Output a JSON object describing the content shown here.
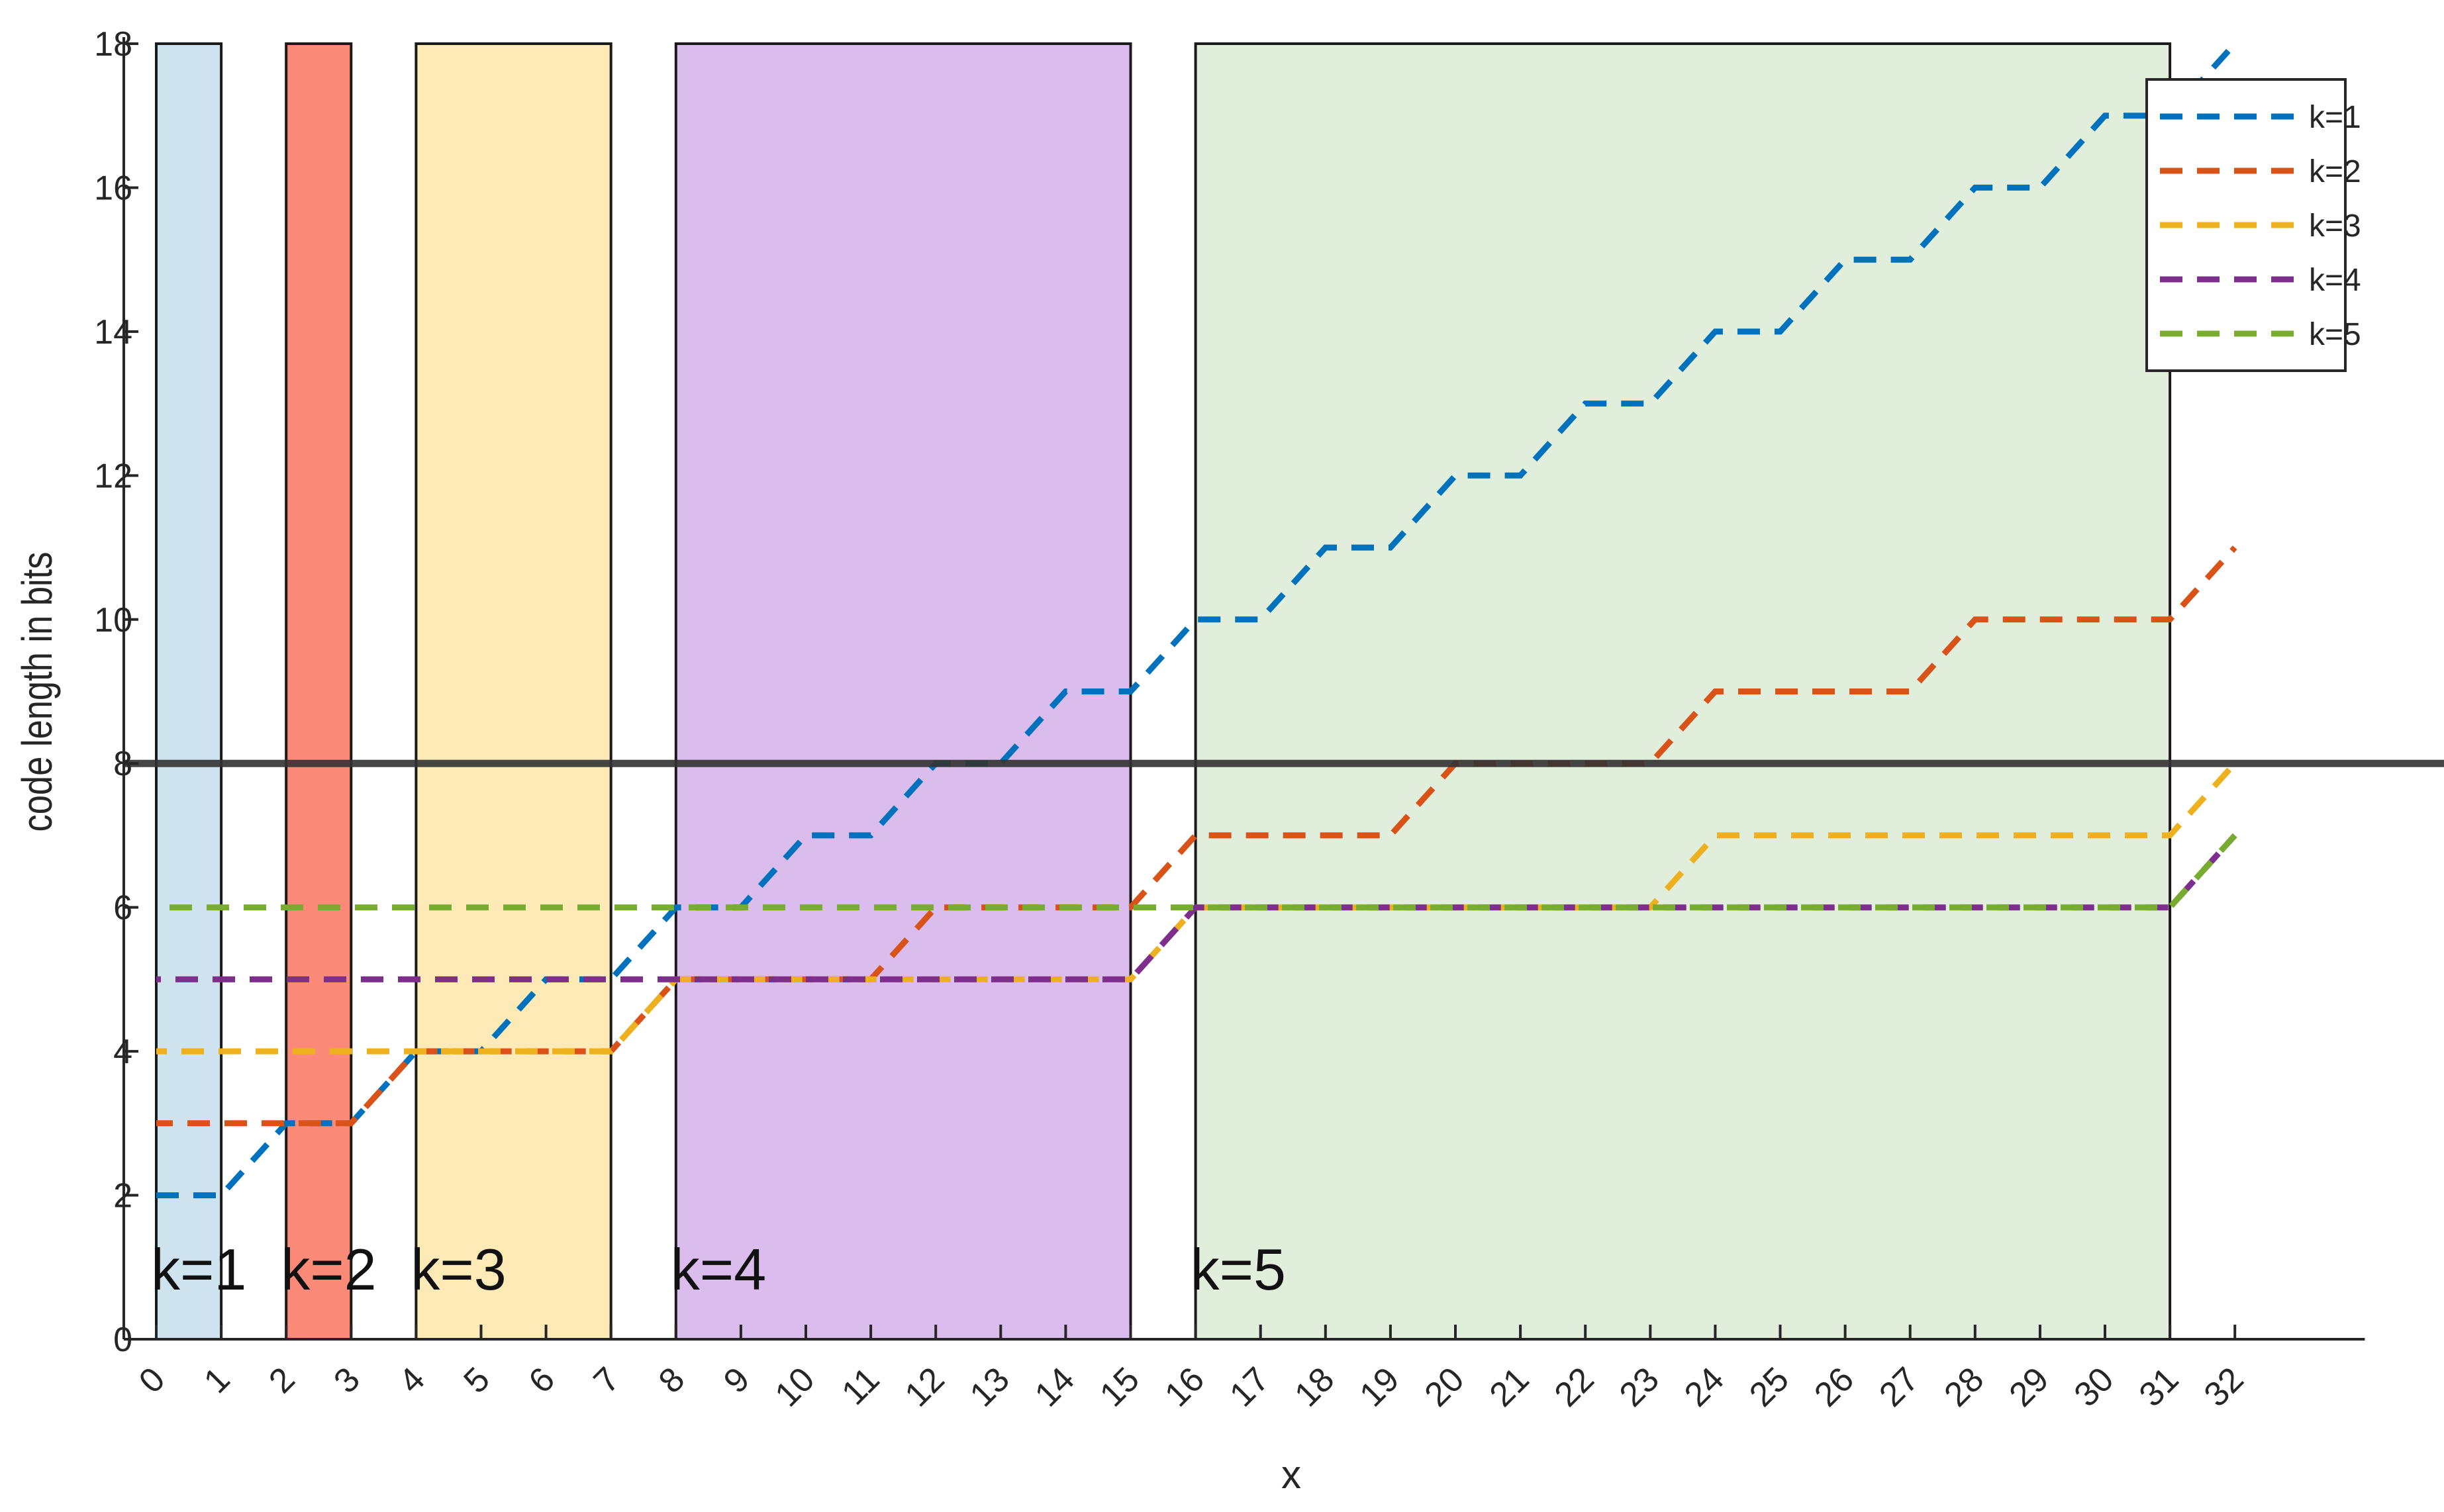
{
  "chart_data": {
    "type": "line",
    "xlabel": "x",
    "ylabel": "code length in bits",
    "xlim": [
      -0.5,
      34
    ],
    "ylim": [
      0,
      18
    ],
    "x_ticks": [
      0,
      1,
      2,
      3,
      4,
      5,
      6,
      7,
      8,
      9,
      10,
      11,
      12,
      13,
      14,
      15,
      16,
      17,
      18,
      19,
      20,
      21,
      22,
      23,
      24,
      25,
      26,
      27,
      28,
      29,
      30,
      31,
      32
    ],
    "y_ticks": [
      0,
      2,
      4,
      6,
      8,
      10,
      12,
      14,
      16,
      18
    ],
    "x_tick_labels": [
      "0",
      "1",
      "2",
      "3",
      "4",
      "5",
      "6",
      "7",
      "8",
      "9",
      "10",
      "11",
      "12",
      "13",
      "14",
      "15",
      "16",
      "17",
      "18",
      "19",
      "20",
      "21",
      "22",
      "23",
      "24",
      "25",
      "26",
      "27",
      "28",
      "29",
      "30",
      "31",
      "32"
    ],
    "y_tick_labels": [
      "0",
      "2",
      "4",
      "6",
      "8",
      "10",
      "12",
      "14",
      "16",
      "18"
    ],
    "reference_line": {
      "y": 8,
      "color": "#333333"
    },
    "regions": [
      {
        "label": "k=1",
        "x0": 0,
        "x1": 1,
        "color": "#cfe3ef"
      },
      {
        "label": "k=2",
        "x0": 2,
        "x1": 3,
        "color": "#fb8a78"
      },
      {
        "label": "k=3",
        "x0": 4,
        "x1": 7,
        "color": "#fdeab7"
      },
      {
        "label": "k=4",
        "x0": 8,
        "x1": 15,
        "color": "#dabded"
      },
      {
        "label": "k=5",
        "x0": 16,
        "x1": 31,
        "color": "#e2eedc"
      }
    ],
    "legend": {
      "position": "top-right",
      "entries": [
        "k=1",
        "k=2",
        "k=3",
        "k=4",
        "k=5"
      ]
    },
    "x": [
      0,
      1,
      2,
      3,
      4,
      5,
      6,
      7,
      8,
      9,
      10,
      11,
      12,
      13,
      14,
      15,
      16,
      17,
      18,
      19,
      20,
      21,
      22,
      23,
      24,
      25,
      26,
      27,
      28,
      29,
      30,
      31,
      32
    ],
    "series": [
      {
        "name": "k=1",
        "color": "#0072BD",
        "values": [
          2,
          2,
          3,
          3,
          4,
          4,
          5,
          5,
          6,
          6,
          7,
          7,
          8,
          8,
          9,
          9,
          10,
          10,
          11,
          11,
          12,
          12,
          13,
          13,
          14,
          14,
          15,
          15,
          16,
          16,
          17,
          17,
          18
        ]
      },
      {
        "name": "k=2",
        "color": "#D95319",
        "values": [
          3,
          3,
          3,
          3,
          4,
          4,
          4,
          4,
          5,
          5,
          5,
          5,
          6,
          6,
          6,
          6,
          7,
          7,
          7,
          7,
          8,
          8,
          8,
          8,
          9,
          9,
          9,
          9,
          10,
          10,
          10,
          10,
          11
        ]
      },
      {
        "name": "k=3",
        "color": "#EDB120",
        "values": [
          4,
          4,
          4,
          4,
          4,
          4,
          4,
          4,
          5,
          5,
          5,
          5,
          5,
          5,
          5,
          5,
          6,
          6,
          6,
          6,
          6,
          6,
          6,
          6,
          7,
          7,
          7,
          7,
          7,
          7,
          7,
          7,
          8
        ]
      },
      {
        "name": "k=4",
        "color": "#7E2F8E",
        "values": [
          5,
          5,
          5,
          5,
          5,
          5,
          5,
          5,
          5,
          5,
          5,
          5,
          5,
          5,
          5,
          5,
          6,
          6,
          6,
          6,
          6,
          6,
          6,
          6,
          6,
          6,
          6,
          6,
          6,
          6,
          6,
          6,
          7
        ]
      },
      {
        "name": "k=5",
        "color": "#77AC30",
        "values": [
          6,
          6,
          6,
          6,
          6,
          6,
          6,
          6,
          6,
          6,
          6,
          6,
          6,
          6,
          6,
          6,
          6,
          6,
          6,
          6,
          6,
          6,
          6,
          6,
          6,
          6,
          6,
          6,
          6,
          6,
          6,
          6,
          7
        ]
      }
    ]
  }
}
